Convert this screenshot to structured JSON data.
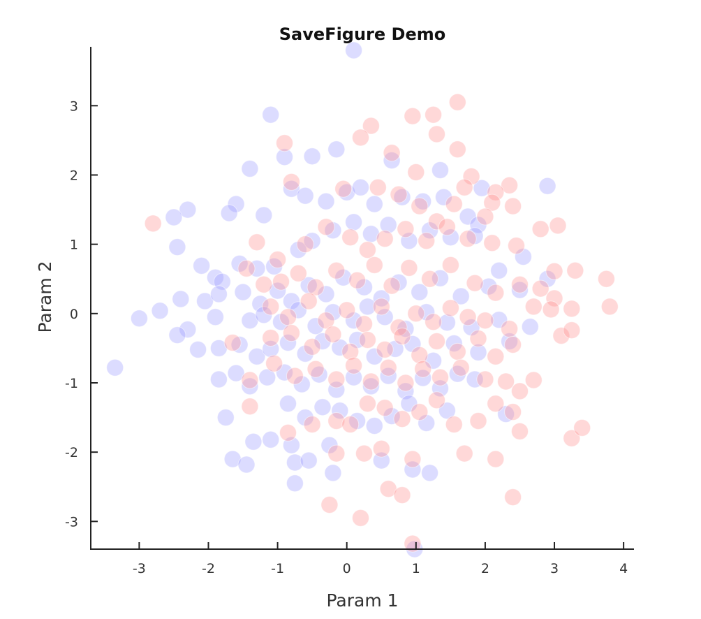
{
  "chart_data": {
    "type": "scatter",
    "title": "SaveFigure Demo",
    "xlabel": "Param 1",
    "ylabel": "Param 2",
    "xlim": [
      -3.7,
      4.15
    ],
    "ylim": [
      -3.4,
      3.85
    ],
    "xticks": [
      "-3",
      "-2",
      "-1",
      "0",
      "1",
      "2",
      "3",
      "4"
    ],
    "yticks": [
      "-3",
      "-2",
      "-1",
      "0",
      "1",
      "2",
      "3"
    ],
    "grid": false,
    "legend": "none",
    "series": [
      {
        "color": "#9b9bff",
        "opacity": 0.35,
        "points": [
          [
            0.1,
            3.8
          ],
          [
            -1.1,
            2.87
          ],
          [
            -1.4,
            2.09
          ],
          [
            -0.9,
            2.26
          ],
          [
            -0.5,
            2.27
          ],
          [
            -0.15,
            2.37
          ],
          [
            0.65,
            2.21
          ],
          [
            1.35,
            2.07
          ],
          [
            1.95,
            1.81
          ],
          [
            2.9,
            1.84
          ],
          [
            -2.3,
            1.5
          ],
          [
            -2.5,
            1.39
          ],
          [
            -2.45,
            0.96
          ],
          [
            -1.6,
            1.58
          ],
          [
            -1.7,
            1.45
          ],
          [
            -1.2,
            1.42
          ],
          [
            -0.8,
            1.8
          ],
          [
            -0.6,
            1.7
          ],
          [
            -0.3,
            1.62
          ],
          [
            0.0,
            1.75
          ],
          [
            0.2,
            1.82
          ],
          [
            0.4,
            1.58
          ],
          [
            0.8,
            1.68
          ],
          [
            1.1,
            1.62
          ],
          [
            1.4,
            1.68
          ],
          [
            1.75,
            1.4
          ],
          [
            1.9,
            1.28
          ],
          [
            -2.1,
            0.69
          ],
          [
            -1.9,
            0.52
          ],
          [
            -1.8,
            0.46
          ],
          [
            -1.55,
            0.72
          ],
          [
            -1.3,
            0.65
          ],
          [
            -1.05,
            0.68
          ],
          [
            -0.7,
            0.92
          ],
          [
            -0.5,
            1.05
          ],
          [
            -0.2,
            1.2
          ],
          [
            0.1,
            1.32
          ],
          [
            0.35,
            1.15
          ],
          [
            0.6,
            1.28
          ],
          [
            0.9,
            1.05
          ],
          [
            1.2,
            1.2
          ],
          [
            1.5,
            1.1
          ],
          [
            1.85,
            1.12
          ],
          [
            2.2,
            0.62
          ],
          [
            2.55,
            0.82
          ],
          [
            -2.4,
            0.21
          ],
          [
            -2.05,
            0.18
          ],
          [
            -1.85,
            0.28
          ],
          [
            -1.5,
            0.31
          ],
          [
            -1.25,
            0.14
          ],
          [
            -1.0,
            0.33
          ],
          [
            -0.8,
            0.18
          ],
          [
            -0.55,
            0.41
          ],
          [
            -0.3,
            0.28
          ],
          [
            -0.05,
            0.52
          ],
          [
            0.25,
            0.38
          ],
          [
            0.5,
            0.22
          ],
          [
            0.75,
            0.45
          ],
          [
            1.05,
            0.31
          ],
          [
            1.35,
            0.51
          ],
          [
            1.65,
            0.25
          ],
          [
            2.05,
            0.39
          ],
          [
            2.5,
            0.34
          ],
          [
            2.9,
            0.5
          ],
          [
            -3.0,
            -0.07
          ],
          [
            -2.7,
            0.04
          ],
          [
            -2.3,
            -0.23
          ],
          [
            -1.9,
            -0.05
          ],
          [
            -1.4,
            -0.1
          ],
          [
            -1.2,
            -0.02
          ],
          [
            -0.95,
            -0.12
          ],
          [
            -0.7,
            0.05
          ],
          [
            -0.45,
            -0.18
          ],
          [
            -0.2,
            0.02
          ],
          [
            0.1,
            -0.1
          ],
          [
            0.3,
            0.1
          ],
          [
            0.55,
            -0.05
          ],
          [
            0.85,
            -0.22
          ],
          [
            1.15,
            0.02
          ],
          [
            1.45,
            -0.13
          ],
          [
            1.8,
            -0.2
          ],
          [
            2.2,
            -0.09
          ],
          [
            2.65,
            -0.19
          ],
          [
            -3.35,
            -0.78
          ],
          [
            -2.45,
            -0.31
          ],
          [
            -2.15,
            -0.52
          ],
          [
            -1.85,
            -0.5
          ],
          [
            -1.55,
            -0.45
          ],
          [
            -1.3,
            -0.62
          ],
          [
            -1.1,
            -0.51
          ],
          [
            -0.85,
            -0.42
          ],
          [
            -0.6,
            -0.58
          ],
          [
            -0.35,
            -0.4
          ],
          [
            -0.1,
            -0.49
          ],
          [
            0.15,
            -0.38
          ],
          [
            0.4,
            -0.62
          ],
          [
            0.7,
            -0.51
          ],
          [
            0.95,
            -0.44
          ],
          [
            1.25,
            -0.68
          ],
          [
            1.55,
            -0.43
          ],
          [
            1.9,
            -0.56
          ],
          [
            2.35,
            -0.4
          ],
          [
            -1.85,
            -0.95
          ],
          [
            -1.6,
            -0.86
          ],
          [
            -1.4,
            -1.05
          ],
          [
            -1.15,
            -0.92
          ],
          [
            -0.9,
            -0.85
          ],
          [
            -0.65,
            -1.02
          ],
          [
            -0.4,
            -0.88
          ],
          [
            -0.15,
            -1.1
          ],
          [
            0.1,
            -0.92
          ],
          [
            0.35,
            -1.05
          ],
          [
            0.6,
            -0.9
          ],
          [
            0.85,
            -1.12
          ],
          [
            1.1,
            -0.93
          ],
          [
            1.35,
            -1.08
          ],
          [
            1.6,
            -0.87
          ],
          [
            1.85,
            -0.95
          ],
          [
            -1.75,
            -1.5
          ],
          [
            -1.35,
            -1.85
          ],
          [
            -1.1,
            -1.82
          ],
          [
            -0.85,
            -1.3
          ],
          [
            -0.6,
            -1.5
          ],
          [
            -0.35,
            -1.35
          ],
          [
            -0.1,
            -1.4
          ],
          [
            0.15,
            -1.55
          ],
          [
            0.4,
            -1.62
          ],
          [
            0.65,
            -1.48
          ],
          [
            0.9,
            -1.3
          ],
          [
            1.15,
            -1.58
          ],
          [
            1.45,
            -1.4
          ],
          [
            2.3,
            -1.45
          ],
          [
            -1.65,
            -2.1
          ],
          [
            -1.45,
            -2.18
          ],
          [
            -0.8,
            -1.9
          ],
          [
            -0.75,
            -2.15
          ],
          [
            -0.55,
            -2.12
          ],
          [
            -0.25,
            -1.9
          ],
          [
            -0.2,
            -2.3
          ],
          [
            0.5,
            -2.12
          ],
          [
            0.95,
            -2.25
          ],
          [
            1.2,
            -2.3
          ],
          [
            -0.75,
            -2.45
          ],
          [
            0.98,
            -3.4
          ]
        ]
      },
      {
        "color": "#ff9090",
        "opacity": 0.35,
        "points": [
          [
            1.6,
            3.05
          ],
          [
            0.95,
            2.85
          ],
          [
            1.25,
            2.87
          ],
          [
            1.3,
            2.59
          ],
          [
            0.35,
            2.71
          ],
          [
            0.2,
            2.54
          ],
          [
            1.6,
            2.37
          ],
          [
            -0.9,
            2.46
          ],
          [
            0.65,
            2.32
          ],
          [
            1.0,
            2.04
          ],
          [
            1.8,
            1.98
          ],
          [
            2.35,
            1.85
          ],
          [
            2.15,
            1.75
          ],
          [
            2.1,
            1.6
          ],
          [
            2.4,
            1.55
          ],
          [
            -2.8,
            1.3
          ],
          [
            -0.8,
            1.9
          ],
          [
            -0.05,
            1.8
          ],
          [
            0.45,
            1.82
          ],
          [
            0.75,
            1.72
          ],
          [
            1.05,
            1.55
          ],
          [
            1.3,
            1.33
          ],
          [
            1.55,
            1.58
          ],
          [
            1.7,
            1.82
          ],
          [
            2.0,
            1.4
          ],
          [
            2.8,
            1.22
          ],
          [
            3.05,
            1.27
          ],
          [
            -1.3,
            1.03
          ],
          [
            -1.0,
            0.78
          ],
          [
            -0.6,
            1.0
          ],
          [
            -0.3,
            1.25
          ],
          [
            0.05,
            1.1
          ],
          [
            0.3,
            0.92
          ],
          [
            0.55,
            1.08
          ],
          [
            0.85,
            1.22
          ],
          [
            1.15,
            1.05
          ],
          [
            1.45,
            1.25
          ],
          [
            1.75,
            1.08
          ],
          [
            2.1,
            1.02
          ],
          [
            2.45,
            0.98
          ],
          [
            3.0,
            0.61
          ],
          [
            3.3,
            0.62
          ],
          [
            3.75,
            0.5
          ],
          [
            -1.45,
            0.65
          ],
          [
            -1.2,
            0.42
          ],
          [
            -0.95,
            0.46
          ],
          [
            -0.7,
            0.58
          ],
          [
            -0.45,
            0.38
          ],
          [
            -0.15,
            0.62
          ],
          [
            0.15,
            0.48
          ],
          [
            0.4,
            0.7
          ],
          [
            0.65,
            0.4
          ],
          [
            0.9,
            0.66
          ],
          [
            1.2,
            0.5
          ],
          [
            1.5,
            0.7
          ],
          [
            1.85,
            0.44
          ],
          [
            2.15,
            0.3
          ],
          [
            2.5,
            0.42
          ],
          [
            2.8,
            0.36
          ],
          [
            3.0,
            0.22
          ],
          [
            3.25,
            0.07
          ],
          [
            3.8,
            0.1
          ],
          [
            -1.1,
            0.1
          ],
          [
            -0.85,
            -0.05
          ],
          [
            -0.55,
            0.18
          ],
          [
            -0.3,
            -0.1
          ],
          [
            0.0,
            0.05
          ],
          [
            0.25,
            -0.15
          ],
          [
            0.5,
            0.1
          ],
          [
            0.75,
            -0.2
          ],
          [
            1.0,
            0.0
          ],
          [
            1.25,
            -0.12
          ],
          [
            1.5,
            0.08
          ],
          [
            1.75,
            -0.05
          ],
          [
            2.0,
            -0.1
          ],
          [
            2.35,
            -0.22
          ],
          [
            2.7,
            0.1
          ],
          [
            2.95,
            0.06
          ],
          [
            -1.65,
            -0.42
          ],
          [
            -1.1,
            -0.35
          ],
          [
            -0.8,
            -0.28
          ],
          [
            -0.5,
            -0.48
          ],
          [
            -0.2,
            -0.3
          ],
          [
            0.05,
            -0.55
          ],
          [
            0.3,
            -0.38
          ],
          [
            0.55,
            -0.52
          ],
          [
            0.8,
            -0.33
          ],
          [
            1.05,
            -0.6
          ],
          [
            1.3,
            -0.4
          ],
          [
            1.6,
            -0.55
          ],
          [
            1.9,
            -0.36
          ],
          [
            2.15,
            -0.62
          ],
          [
            2.4,
            -0.45
          ],
          [
            3.1,
            -0.32
          ],
          [
            3.25,
            -0.24
          ],
          [
            -1.4,
            -0.96
          ],
          [
            -1.05,
            -0.72
          ],
          [
            -0.75,
            -0.9
          ],
          [
            -0.45,
            -0.8
          ],
          [
            -0.15,
            -0.95
          ],
          [
            0.1,
            -0.75
          ],
          [
            0.35,
            -0.98
          ],
          [
            0.6,
            -0.78
          ],
          [
            0.85,
            -1.0
          ],
          [
            1.1,
            -0.8
          ],
          [
            1.35,
            -0.92
          ],
          [
            1.65,
            -0.78
          ],
          [
            2.0,
            -0.95
          ],
          [
            2.3,
            -0.98
          ],
          [
            2.7,
            -0.96
          ],
          [
            -1.4,
            -1.34
          ],
          [
            -0.85,
            -1.72
          ],
          [
            -0.5,
            -1.6
          ],
          [
            -0.15,
            -1.55
          ],
          [
            0.05,
            -1.6
          ],
          [
            0.3,
            -1.3
          ],
          [
            0.55,
            -1.36
          ],
          [
            0.8,
            -1.52
          ],
          [
            1.05,
            -1.42
          ],
          [
            1.3,
            -1.25
          ],
          [
            1.55,
            -1.6
          ],
          [
            1.9,
            -1.55
          ],
          [
            2.15,
            -1.3
          ],
          [
            2.4,
            -1.42
          ],
          [
            2.5,
            -1.12
          ],
          [
            2.5,
            -1.7
          ],
          [
            3.25,
            -1.8
          ],
          [
            3.4,
            -1.65
          ],
          [
            -0.15,
            -2.02
          ],
          [
            0.25,
            -2.02
          ],
          [
            0.5,
            -1.95
          ],
          [
            0.95,
            -2.1
          ],
          [
            1.7,
            -2.02
          ],
          [
            2.15,
            -2.1
          ],
          [
            0.6,
            -2.53
          ],
          [
            0.8,
            -2.62
          ],
          [
            -0.25,
            -2.76
          ],
          [
            0.2,
            -2.95
          ],
          [
            2.4,
            -2.65
          ],
          [
            0.95,
            -3.32
          ]
        ]
      }
    ]
  }
}
